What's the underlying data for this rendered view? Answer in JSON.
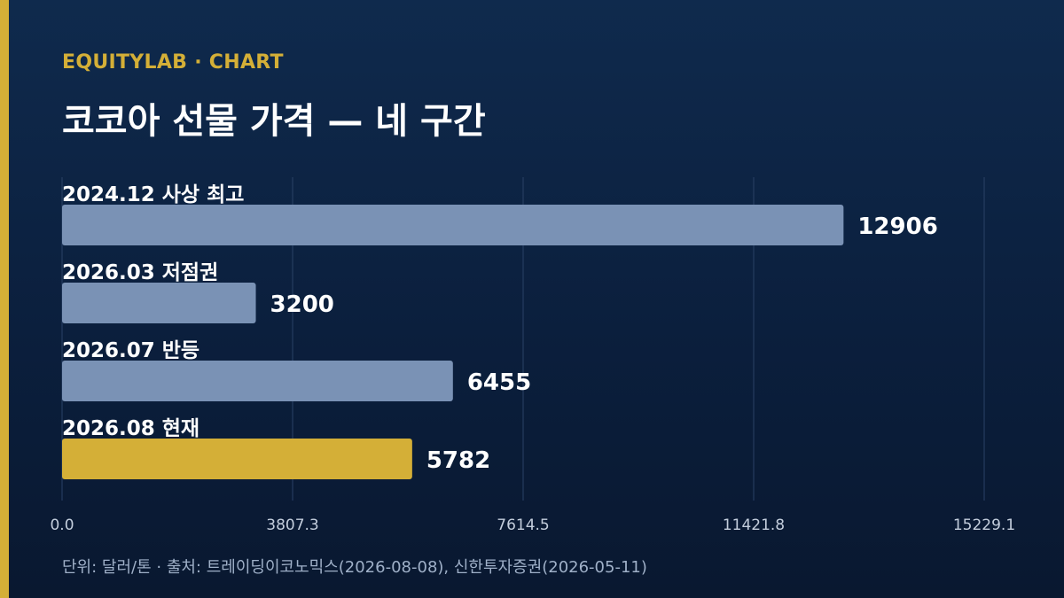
{
  "header": {
    "brand": "EQUITYLAB · CHART",
    "title": "코코아 선물 가격 — 네 구간"
  },
  "footer": {
    "note": "단위: 달러/톤 · 출처: 트레이딩이코노믹스(2026-08-08), 신한투자증권(2026-05-11)"
  },
  "colors": {
    "accent": "#d4af37",
    "bar_default": "#7a92b5",
    "bar_highlight": "#d4af37",
    "grid": "#2a4266",
    "tick_label": "#c4cedd"
  },
  "chart_data": {
    "type": "bar",
    "orientation": "horizontal",
    "categories": [
      "2024.12 사상 최고",
      "2026.03 저점권",
      "2026.07 반등",
      "2026.08 현재"
    ],
    "values": [
      12906,
      3200,
      6455,
      5782
    ],
    "value_labels": [
      "12906",
      "3200",
      "6455",
      "5782"
    ],
    "highlight_index": 3,
    "xlim": [
      0,
      15229.1
    ],
    "xticks": [
      0,
      3807.3,
      7614.5,
      11421.8,
      15229.1
    ],
    "xtick_labels": [
      "0.0",
      "3807.3",
      "7614.5",
      "11421.8",
      "15229.1"
    ],
    "grid": true
  }
}
